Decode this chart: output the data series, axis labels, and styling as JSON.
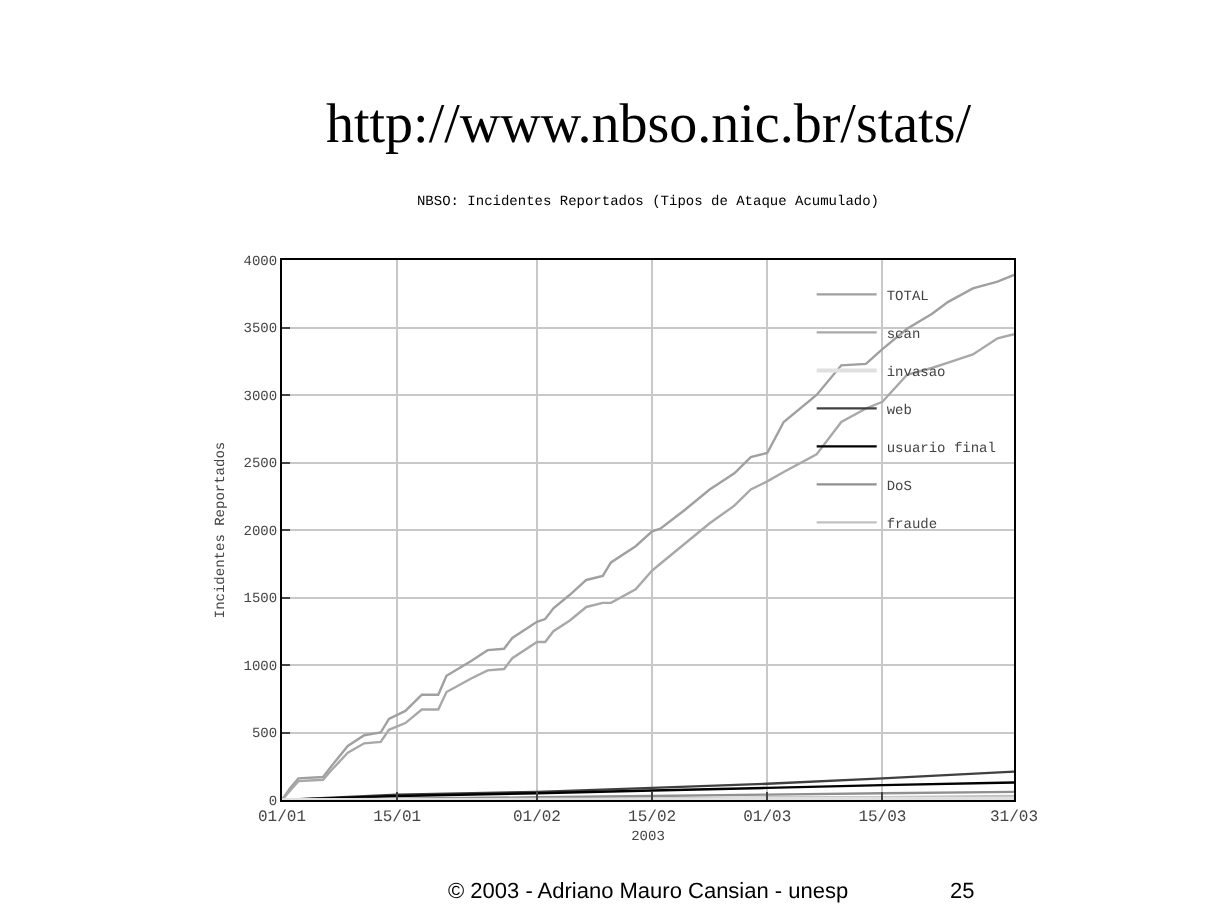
{
  "chart_data": {
    "type": "line",
    "title": "NBSO: Incidentes Reportados (Tipos de Ataque Acumulado)",
    "xlabel": "2003",
    "ylabel": "Incidentes Reportados",
    "annotations": [
      "http://www.nbso.nic.br/stats/",
      "© 2003 - Adriano Mauro Cansian - unesp",
      "25"
    ],
    "x": [
      "2003-01-01",
      "2003-01-02",
      "2003-01-03",
      "2003-01-06",
      "2003-01-07",
      "2003-01-09",
      "2003-01-11",
      "2003-01-13",
      "2003-01-14",
      "2003-01-16",
      "2003-01-18",
      "2003-01-20",
      "2003-01-21",
      "2003-01-24",
      "2003-01-26",
      "2003-01-28",
      "2003-01-29",
      "2003-02-01",
      "2003-02-02",
      "2003-02-03",
      "2003-02-05",
      "2003-02-07",
      "2003-02-09",
      "2003-02-10",
      "2003-02-13",
      "2003-02-15",
      "2003-02-16",
      "2003-02-19",
      "2003-02-22",
      "2003-02-25",
      "2003-02-27",
      "2003-03-01",
      "2003-03-03",
      "2003-03-07",
      "2003-03-10",
      "2003-03-13",
      "2003-03-15",
      "2003-03-18",
      "2003-03-21",
      "2003-03-23",
      "2003-03-26",
      "2003-03-29",
      "2003-03-31"
    ],
    "series": [
      {
        "name": "TOTAL",
        "color": "#a0a0a0",
        "values": [
          0,
          90,
          160,
          170,
          250,
          400,
          480,
          500,
          600,
          660,
          780,
          780,
          920,
          1030,
          1110,
          1120,
          1200,
          1320,
          1340,
          1420,
          1520,
          1630,
          1660,
          1760,
          1880,
          1990,
          2010,
          2150,
          2300,
          2420,
          2540,
          2570,
          2800,
          3000,
          3220,
          3230,
          3340,
          3490,
          3600,
          3690,
          3790,
          3840,
          3890
        ]
      },
      {
        "name": "scan",
        "color": "#a8a8a8",
        "values": [
          0,
          70,
          140,
          150,
          220,
          350,
          420,
          430,
          520,
          570,
          670,
          670,
          800,
          900,
          960,
          970,
          1050,
          1170,
          1170,
          1250,
          1330,
          1430,
          1460,
          1460,
          1560,
          1700,
          1750,
          1900,
          2050,
          2180,
          2300,
          2360,
          2430,
          2560,
          2800,
          2900,
          2950,
          3150,
          3200,
          3240,
          3300,
          3420,
          3450
        ]
      },
      {
        "name": "invasao",
        "color": "#e0e0e0",
        "x": [
          "2003-01-01",
          "2003-01-15",
          "2003-02-01",
          "2003-02-15",
          "2003-03-01",
          "2003-03-15",
          "2003-03-31"
        ],
        "values": [
          0,
          0,
          0,
          0,
          10,
          10,
          10
        ]
      },
      {
        "name": "web",
        "color": "#404040",
        "x": [
          "2003-01-01",
          "2003-01-15",
          "2003-02-01",
          "2003-02-15",
          "2003-03-01",
          "2003-03-15",
          "2003-03-31"
        ],
        "values": [
          0,
          40,
          60,
          90,
          120,
          160,
          210
        ]
      },
      {
        "name": "usuario final",
        "color": "#000000",
        "x": [
          "2003-01-01",
          "2003-01-15",
          "2003-02-01",
          "2003-02-15",
          "2003-03-01",
          "2003-03-15",
          "2003-03-31"
        ],
        "values": [
          0,
          30,
          50,
          70,
          90,
          110,
          130
        ]
      },
      {
        "name": "DoS",
        "color": "#909090",
        "x": [
          "2003-01-01",
          "2003-01-15",
          "2003-02-01",
          "2003-02-15",
          "2003-03-01",
          "2003-03-15",
          "2003-03-31"
        ],
        "values": [
          0,
          10,
          20,
          30,
          40,
          50,
          60
        ]
      },
      {
        "name": "fraude",
        "color": "#c0c0c0",
        "x": [
          "2003-01-01",
          "2003-01-15",
          "2003-02-01",
          "2003-02-15",
          "2003-03-01",
          "2003-03-15",
          "2003-03-31"
        ],
        "values": [
          0,
          0,
          10,
          10,
          20,
          20,
          30
        ]
      }
    ],
    "xlim": [
      "2003-01-01",
      "2003-03-31"
    ],
    "xticks": [
      {
        "value": "2003-01-01",
        "label": "01/01"
      },
      {
        "value": "2003-01-15",
        "label": "15/01"
      },
      {
        "value": "2003-02-01",
        "label": "01/02"
      },
      {
        "value": "2003-02-15",
        "label": "15/02"
      },
      {
        "value": "2003-03-01",
        "label": "01/03"
      },
      {
        "value": "2003-03-15",
        "label": "15/03"
      },
      {
        "value": "2003-03-31",
        "label": "31/03"
      }
    ],
    "ylim": [
      0,
      4000
    ],
    "yticks": [
      0,
      500,
      1000,
      1500,
      2000,
      2500,
      3000,
      3500,
      4000
    ],
    "grid": true,
    "legend": "top right",
    "line_style": "solid",
    "marker": "none"
  }
}
